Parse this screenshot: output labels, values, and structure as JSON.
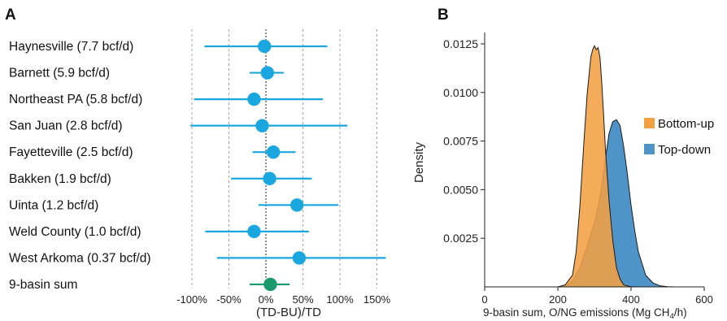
{
  "chart_data": [
    {
      "panel": "A",
      "type": "scatter",
      "xlabel": "(TD-BU)/TD",
      "xlim": [
        -110,
        160
      ],
      "x_ticks": [
        -100,
        -50,
        0,
        50,
        100,
        150
      ],
      "x_tick_labels": [
        "-100%",
        "-50%",
        "0%",
        "50%",
        "100%",
        "150%"
      ],
      "grid": "vertical dashed",
      "reference_line": 0,
      "colors": {
        "basin": "#1aa7e0",
        "sum": "#1a9a6c",
        "grid": "#9a9a9a",
        "zero": "#333333"
      },
      "rows": [
        {
          "label": "Haynesville (7.7 bcf/d)",
          "value": -2,
          "low": -83,
          "high": 83
        },
        {
          "label": "Barnett (5.9 bcf/d)",
          "value": 2,
          "low": -22,
          "high": 24
        },
        {
          "label": "Northeast PA (5.8 bcf/d)",
          "value": -16,
          "low": -97,
          "high": 77
        },
        {
          "label": "San Juan (2.8 bcf/d)",
          "value": -5,
          "low": -102,
          "high": 110
        },
        {
          "label": "Fayetteville (2.5 bcf/d)",
          "value": 10,
          "low": -18,
          "high": 40
        },
        {
          "label": "Bakken (1.9 bcf/d)",
          "value": 5,
          "low": -47,
          "high": 62
        },
        {
          "label": "Uinta (1.2 bcf/d)",
          "value": 42,
          "low": -10,
          "high": 98
        },
        {
          "label": "Weld County (1.0 bcf/d)",
          "value": -16,
          "low": -82,
          "high": 58
        },
        {
          "label": "West Arkoma (0.37 bcf/d)",
          "value": 45,
          "low": -66,
          "high": 162
        },
        {
          "label": "9-basin sum",
          "value": 6,
          "low": -22,
          "high": 32,
          "highlight": true
        }
      ]
    },
    {
      "panel": "B",
      "type": "area",
      "ylabel": "Density",
      "xlabel_main": "9-basin sum, O/NG emissions (Mg CH",
      "xlabel_sub": "4",
      "xlabel_tail": "/h)",
      "xlim": [
        0,
        600
      ],
      "ylim": [
        0,
        0.013
      ],
      "x_ticks": [
        0,
        200,
        400,
        600
      ],
      "x_tick_labels": [
        "0",
        "200",
        "400",
        "600"
      ],
      "y_ticks": [
        0.0025,
        0.005,
        0.0075,
        0.01,
        0.0125
      ],
      "y_tick_labels": [
        "0.0025",
        "0.0050",
        "0.0075",
        "0.0100",
        "0.0125"
      ],
      "legend_position": "right",
      "series": [
        {
          "name": "Top-down",
          "color": "#4f94c8",
          "x": [
            200,
            220,
            240,
            260,
            280,
            300,
            310,
            320,
            330,
            340,
            350,
            360,
            370,
            380,
            390,
            400,
            410,
            420,
            440,
            460,
            480,
            500,
            520
          ],
          "y": [
            0,
            5e-05,
            0.0003,
            0.001,
            0.0021,
            0.0033,
            0.0041,
            0.0052,
            0.0066,
            0.0079,
            0.0085,
            0.0086,
            0.0083,
            0.0072,
            0.0058,
            0.0042,
            0.0029,
            0.0018,
            0.0006,
            0.0002,
            5e-05,
            1e-05,
            0
          ]
        },
        {
          "name": "Bottom-up",
          "color": "#f3a043",
          "x": [
            200,
            220,
            240,
            250,
            260,
            270,
            280,
            290,
            295,
            300,
            305,
            310,
            315,
            320,
            325,
            330,
            340,
            350,
            360,
            370,
            380,
            400,
            420
          ],
          "y": [
            0,
            0.0001,
            0.0006,
            0.0018,
            0.0041,
            0.0071,
            0.0099,
            0.0118,
            0.0122,
            0.0124,
            0.0122,
            0.0123,
            0.0118,
            0.0105,
            0.0088,
            0.0071,
            0.0044,
            0.0024,
            0.001,
            0.0004,
            0.0001,
            1e-05,
            0
          ]
        }
      ]
    }
  ]
}
